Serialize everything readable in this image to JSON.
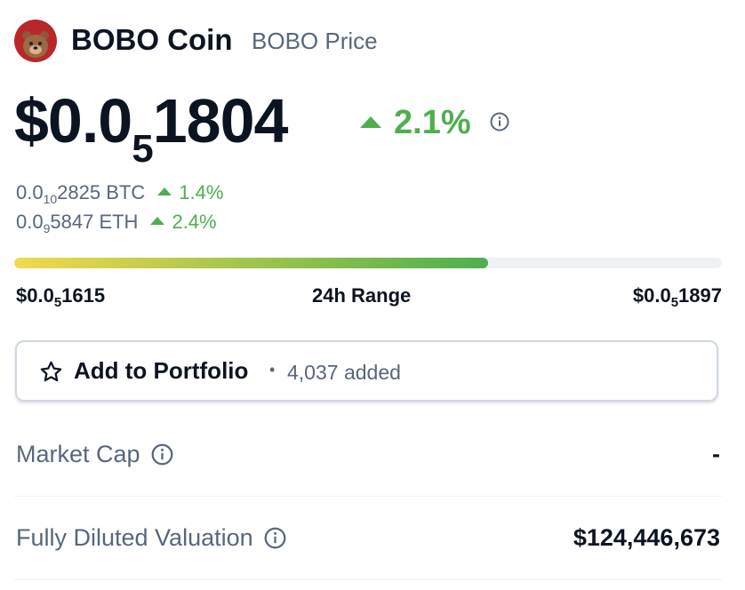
{
  "header": {
    "name": "BOBO Coin",
    "subtitle": "BOBO Price"
  },
  "price": {
    "prefix": "$0.0",
    "zeros": "5",
    "digits": "1804",
    "change": "2.1%"
  },
  "conversions": [
    {
      "prefix": "0.0",
      "zeros": "10",
      "digits": "2825 BTC",
      "change": "1.4%"
    },
    {
      "prefix": "0.0",
      "zeros": "9",
      "digits": "5847 ETH",
      "change": "2.4%"
    }
  ],
  "range": {
    "low": {
      "prefix": "$0.0",
      "zeros": "5",
      "digits": "1615"
    },
    "label": "24h Range",
    "high": {
      "prefix": "$0.0",
      "zeros": "5",
      "digits": "1897"
    }
  },
  "portfolio": {
    "label": "Add to Portfolio",
    "separator": "•",
    "count": "4,037 added"
  },
  "stats": [
    {
      "label": "Market Cap",
      "value": "-"
    },
    {
      "label": "Fully Diluted Valuation",
      "value": "$124,446,673"
    }
  ]
}
